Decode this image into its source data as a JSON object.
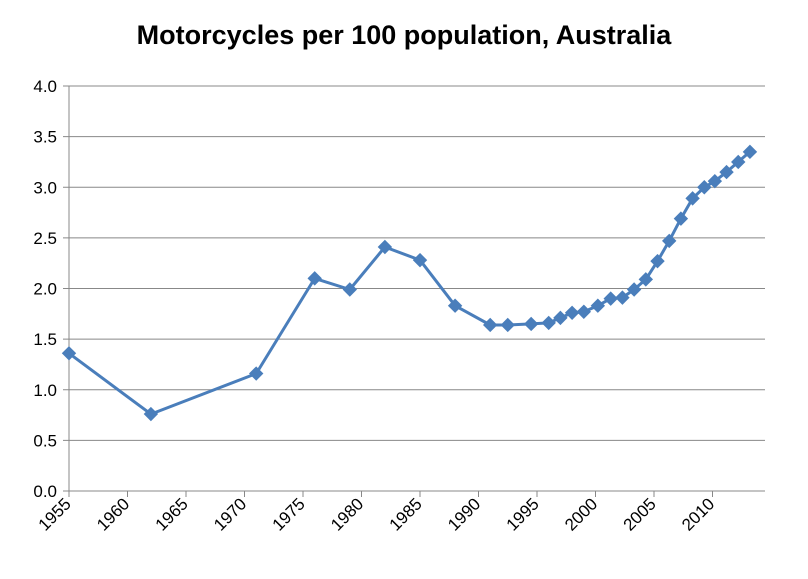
{
  "chart_data": {
    "type": "line",
    "title": "Motorcycles per 100 population, Australia",
    "xlabel": "",
    "ylabel": "",
    "xlim": [
      1955,
      2013.5
    ],
    "ylim": [
      0,
      4.0
    ],
    "y_ticks": [
      "0.0",
      "0.5",
      "1.0",
      "1.5",
      "2.0",
      "2.5",
      "3.0",
      "3.5",
      "4.0"
    ],
    "x_ticks": [
      "1955",
      "1960",
      "1965",
      "1970",
      "1975",
      "1980",
      "1985",
      "1990",
      "1995",
      "2000",
      "2005",
      "2010"
    ],
    "grid": "horizontal",
    "legend": "none",
    "series": [
      {
        "name": "Motorcycles per 100 population",
        "color": "#4a7ebb",
        "marker": "diamond",
        "points": [
          [
            1955,
            1.36
          ],
          [
            1962,
            0.76
          ],
          [
            1971,
            1.16
          ],
          [
            1976,
            2.1
          ],
          [
            1979,
            1.99
          ],
          [
            1982,
            2.41
          ],
          [
            1985,
            2.28
          ],
          [
            1988,
            1.83
          ],
          [
            1991,
            1.64
          ],
          [
            1992.5,
            1.64
          ],
          [
            1994.5,
            1.65
          ],
          [
            1996,
            1.66
          ],
          [
            1997,
            1.71
          ],
          [
            1998,
            1.76
          ],
          [
            1999,
            1.77
          ],
          [
            2000.2,
            1.83
          ],
          [
            2001.3,
            1.9
          ],
          [
            2002.3,
            1.91
          ],
          [
            2003.3,
            1.99
          ],
          [
            2004.3,
            2.09
          ],
          [
            2005.3,
            2.27
          ],
          [
            2006.3,
            2.47
          ],
          [
            2007.3,
            2.69
          ],
          [
            2008.3,
            2.89
          ],
          [
            2009.3,
            3.0
          ],
          [
            2010.2,
            3.06
          ],
          [
            2011.2,
            3.15
          ],
          [
            2012.2,
            3.25
          ],
          [
            2013.2,
            3.35
          ]
        ]
      }
    ]
  }
}
